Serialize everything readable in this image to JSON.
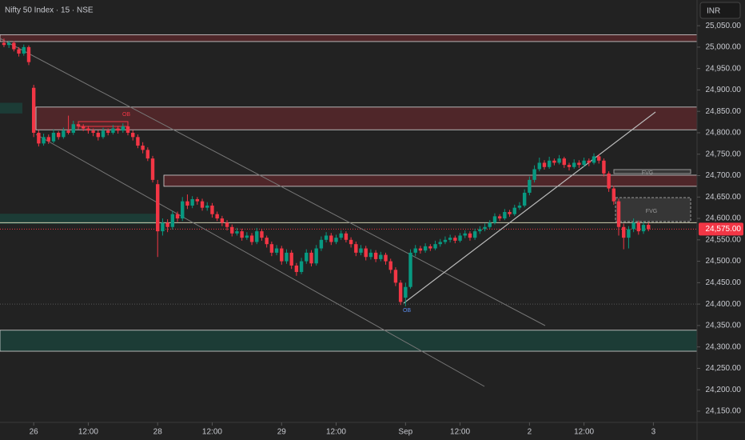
{
  "chart_data": {
    "type": "candlestick",
    "title": "Nifty 50 Index · 15 · NSE",
    "currency": "INR",
    "up_color": "#089981",
    "down_color": "#f23645",
    "ylim": [
      24135,
      25110
    ],
    "yticks": [
      {
        "value": 25050,
        "label": "25,050.00"
      },
      {
        "value": 25000,
        "label": "25,000.00"
      },
      {
        "value": 24950,
        "label": "24,950.00"
      },
      {
        "value": 24900,
        "label": "24,900.00"
      },
      {
        "value": 24850,
        "label": "24,850.00"
      },
      {
        "value": 24800,
        "label": "24,800.00"
      },
      {
        "value": 24750,
        "label": "24,750.00"
      },
      {
        "value": 24700,
        "label": "24,700.00"
      },
      {
        "value": 24650,
        "label": "24,650.00"
      },
      {
        "value": 24600,
        "label": "24,600.00"
      },
      {
        "value": 24550,
        "label": "24,550.00"
      },
      {
        "value": 24500,
        "label": "24,500.00"
      },
      {
        "value": 24450,
        "label": "24,450.00"
      },
      {
        "value": 24400,
        "label": "24,400.00"
      },
      {
        "value": 24350,
        "label": "24,350.00"
      },
      {
        "value": 24300,
        "label": "24,300.00"
      },
      {
        "value": 24250,
        "label": "24,250.00"
      },
      {
        "value": 24200,
        "label": "24,200.00"
      },
      {
        "value": 24150,
        "label": "24,150.00"
      }
    ],
    "xlim": [
      -0.8,
      139.8
    ],
    "xticks": [
      {
        "value": 6,
        "label": "26"
      },
      {
        "value": 17,
        "label": "12:00"
      },
      {
        "value": 31,
        "label": "28"
      },
      {
        "value": 42,
        "label": "12:00"
      },
      {
        "value": 56,
        "label": "29"
      },
      {
        "value": 67,
        "label": "12:00"
      },
      {
        "value": 81,
        "label": "Sep"
      },
      {
        "value": 92,
        "label": "12:00"
      },
      {
        "value": 106,
        "label": "2"
      },
      {
        "value": 117,
        "label": "12:00"
      },
      {
        "value": 131,
        "label": "3"
      }
    ],
    "last_price": {
      "value": 24575,
      "label": "24,575.00"
    },
    "zones": [
      {
        "from": 25013,
        "to": 25029,
        "color": "#f23645"
      },
      {
        "from": 24845,
        "to": 24870,
        "color": "#089981"
      },
      {
        "from": 24807,
        "to": 24860,
        "color": "#f23645"
      },
      {
        "from": 24675,
        "to": 24701,
        "color": "#f23645"
      },
      {
        "from": 24587,
        "to": 24611,
        "color": "#089981"
      },
      {
        "from": 24290,
        "to": 24339,
        "color": "#089981"
      }
    ],
    "levels": [
      24590,
      24400
    ],
    "annotations": [
      "OB",
      "OB",
      "FVG",
      "FVG"
    ],
    "ohlc": [
      [
        25010,
        25020,
        25000,
        25005
      ],
      [
        25005,
        25015,
        24998,
        25010
      ],
      [
        25010,
        25014,
        24990,
        24995
      ],
      [
        24995,
        25000,
        24978,
        24985
      ],
      [
        24985,
        25006,
        24980,
        25000
      ],
      [
        25000,
        25004,
        24958,
        24965
      ],
      [
        24905,
        24912,
        24790,
        24800
      ],
      [
        24800,
        24806,
        24768,
        24775
      ],
      [
        24775,
        24798,
        24770,
        24790
      ],
      [
        24790,
        24796,
        24774,
        24780
      ],
      [
        24780,
        24808,
        24776,
        24800
      ],
      [
        24800,
        24804,
        24784,
        24790
      ],
      [
        24790,
        24812,
        24786,
        24805
      ],
      [
        24805,
        24840,
        24796,
        24800
      ],
      [
        24800,
        24828,
        24795,
        24820
      ],
      [
        24820,
        24826,
        24808,
        24815
      ],
      [
        24815,
        24820,
        24804,
        24810
      ],
      [
        24810,
        24816,
        24798,
        24805
      ],
      [
        24805,
        24810,
        24792,
        24800
      ],
      [
        24800,
        24806,
        24782,
        24790
      ],
      [
        24790,
        24812,
        24786,
        24805
      ],
      [
        24805,
        24810,
        24794,
        24800
      ],
      [
        24800,
        24818,
        24796,
        24810
      ],
      [
        24810,
        24816,
        24798,
        24805
      ],
      [
        24805,
        24822,
        24800,
        24815
      ],
      [
        24815,
        24820,
        24794,
        24800
      ],
      [
        24800,
        24806,
        24782,
        24790
      ],
      [
        24790,
        24796,
        24764,
        24770
      ],
      [
        24770,
        24778,
        24752,
        24760
      ],
      [
        24760,
        24766,
        24734,
        24740
      ],
      [
        24740,
        24746,
        24684,
        24690
      ],
      [
        24680,
        24690,
        24510,
        24570
      ],
      [
        24570,
        24600,
        24560,
        24590
      ],
      [
        24590,
        24598,
        24568,
        24580
      ],
      [
        24580,
        24618,
        24574,
        24610
      ],
      [
        24610,
        24616,
        24592,
        24600
      ],
      [
        24600,
        24650,
        24594,
        24640
      ],
      [
        24640,
        24656,
        24622,
        24630
      ],
      [
        24630,
        24652,
        24624,
        24645
      ],
      [
        24645,
        24650,
        24632,
        24640
      ],
      [
        24640,
        24646,
        24618,
        24625
      ],
      [
        24625,
        24638,
        24618,
        24630
      ],
      [
        24630,
        24636,
        24602,
        24610
      ],
      [
        24610,
        24616,
        24594,
        24600
      ],
      [
        24600,
        24606,
        24582,
        24590
      ],
      [
        24590,
        24596,
        24572,
        24580
      ],
      [
        24580,
        24586,
        24558,
        24565
      ],
      [
        24565,
        24578,
        24560,
        24570
      ],
      [
        24570,
        24576,
        24548,
        24555
      ],
      [
        24555,
        24568,
        24550,
        24560
      ],
      [
        24560,
        24566,
        24538,
        24545
      ],
      [
        24545,
        24578,
        24540,
        24570
      ],
      [
        24570,
        24576,
        24548,
        24555
      ],
      [
        24555,
        24560,
        24532,
        24540
      ],
      [
        24540,
        24546,
        24512,
        24520
      ],
      [
        24520,
        24538,
        24514,
        24530
      ],
      [
        24530,
        24536,
        24492,
        24500
      ],
      [
        24500,
        24528,
        24494,
        24520
      ],
      [
        24520,
        24526,
        24482,
        24490
      ],
      [
        24490,
        24496,
        24466,
        24475
      ],
      [
        24475,
        24508,
        24470,
        24500
      ],
      [
        24500,
        24528,
        24494,
        24520
      ],
      [
        24520,
        24526,
        24488,
        24495
      ],
      [
        24495,
        24538,
        24490,
        24530
      ],
      [
        24530,
        24558,
        24524,
        24550
      ],
      [
        24550,
        24568,
        24544,
        24560
      ],
      [
        24560,
        24566,
        24538,
        24545
      ],
      [
        24545,
        24562,
        24540,
        24555
      ],
      [
        24555,
        24572,
        24550,
        24565
      ],
      [
        24565,
        24570,
        24544,
        24550
      ],
      [
        24550,
        24556,
        24532,
        24540
      ],
      [
        24540,
        24546,
        24512,
        24520
      ],
      [
        24520,
        24538,
        24514,
        24530
      ],
      [
        24530,
        24536,
        24502,
        24510
      ],
      [
        24510,
        24528,
        24504,
        24520
      ],
      [
        24520,
        24526,
        24498,
        24505
      ],
      [
        24505,
        24522,
        24500,
        24515
      ],
      [
        24515,
        24520,
        24492,
        24500
      ],
      [
        24500,
        24506,
        24472,
        24480
      ],
      [
        24480,
        24486,
        24442,
        24450
      ],
      [
        24450,
        24456,
        24398,
        24405
      ],
      [
        24415,
        24450,
        24395,
        24440
      ],
      [
        24440,
        24528,
        24436,
        24520
      ],
      [
        24520,
        24538,
        24512,
        24530
      ],
      [
        24530,
        24536,
        24518,
        24525
      ],
      [
        24525,
        24542,
        24520,
        24535
      ],
      [
        24535,
        24540,
        24524,
        24530
      ],
      [
        24530,
        24548,
        24526,
        24540
      ],
      [
        24540,
        24552,
        24534,
        24545
      ],
      [
        24545,
        24558,
        24540,
        24550
      ],
      [
        24550,
        24562,
        24544,
        24555
      ],
      [
        24555,
        24560,
        24542,
        24548
      ],
      [
        24548,
        24566,
        24544,
        24560
      ],
      [
        24560,
        24572,
        24554,
        24565
      ],
      [
        24565,
        24570,
        24548,
        24555
      ],
      [
        24555,
        24576,
        24550,
        24570
      ],
      [
        24570,
        24582,
        24564,
        24575
      ],
      [
        24575,
        24588,
        24570,
        24580
      ],
      [
        24580,
        24596,
        24576,
        24590
      ],
      [
        24590,
        24612,
        24586,
        24605
      ],
      [
        24605,
        24610,
        24594,
        24600
      ],
      [
        24600,
        24622,
        24596,
        24615
      ],
      [
        24615,
        24620,
        24604,
        24610
      ],
      [
        24610,
        24632,
        24606,
        24625
      ],
      [
        24625,
        24638,
        24620,
        24630
      ],
      [
        24630,
        24668,
        24626,
        24660
      ],
      [
        24660,
        24698,
        24654,
        24690
      ],
      [
        24690,
        24724,
        24684,
        24715
      ],
      [
        24715,
        24742,
        24710,
        24730
      ],
      [
        24730,
        24736,
        24714,
        24720
      ],
      [
        24720,
        24744,
        24716,
        24735
      ],
      [
        24735,
        24740,
        24724,
        24730
      ],
      [
        24730,
        24748,
        24726,
        24740
      ],
      [
        24740,
        24744,
        24718,
        24725
      ],
      [
        24725,
        24730,
        24712,
        24720
      ],
      [
        24720,
        24738,
        24716,
        24730
      ],
      [
        24730,
        24736,
        24718,
        24725
      ],
      [
        24725,
        24742,
        24720,
        24735
      ],
      [
        24735,
        24740,
        24722,
        24730
      ],
      [
        24730,
        24752,
        24726,
        24745
      ],
      [
        24745,
        24750,
        24728,
        24735
      ],
      [
        24735,
        24740,
        24698,
        24705
      ],
      [
        24705,
        24710,
        24662,
        24670
      ],
      [
        24670,
        24676,
        24632,
        24640
      ],
      [
        24640,
        24646,
        24560,
        24580
      ],
      [
        24580,
        24588,
        24528,
        24555
      ],
      [
        24555,
        24582,
        24530,
        24575
      ],
      [
        24575,
        24600,
        24568,
        24590
      ],
      [
        24590,
        24595,
        24562,
        24570
      ],
      [
        24570,
        24592,
        24564,
        24585
      ],
      [
        24585,
        24590,
        24570,
        24575
      ]
    ]
  }
}
